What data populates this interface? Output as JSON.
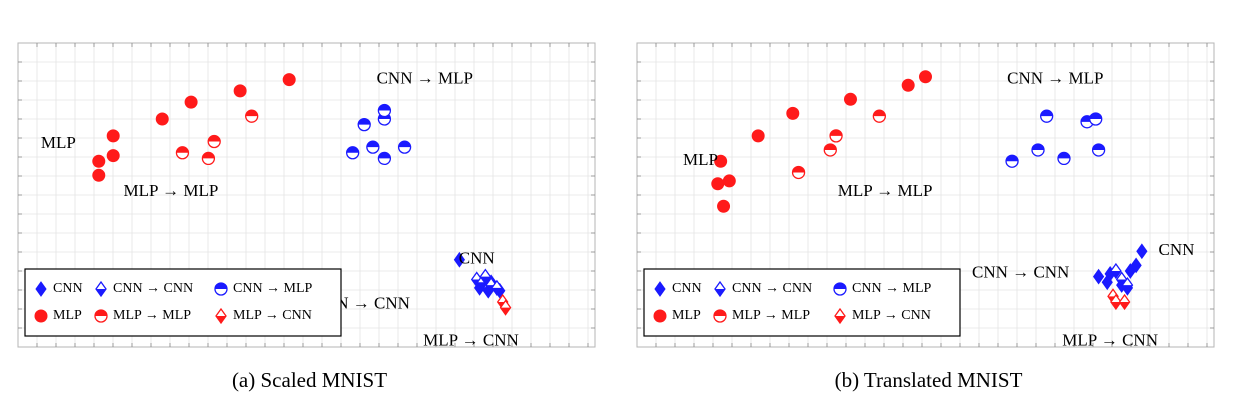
{
  "colors": {
    "cnn": "#1a1aff",
    "mlp": "#ff1a1a",
    "grid": "#e4e4e4",
    "frame": "#b5b5b5"
  },
  "legend": {
    "items": [
      {
        "label": "CNN",
        "marker": "diamond-full",
        "color": "#1a1aff"
      },
      {
        "label": "CNN → CNN",
        "marker": "diamond-half",
        "color": "#1a1aff"
      },
      {
        "label": "CNN → MLP",
        "marker": "circle-half",
        "color": "#1a1aff"
      },
      {
        "label": "MLP",
        "marker": "circle-full",
        "color": "#ff1a1a"
      },
      {
        "label": "MLP → MLP",
        "marker": "circle-half",
        "color": "#ff1a1a"
      },
      {
        "label": "MLP → CNN",
        "marker": "diamond-half",
        "color": "#ff1a1a"
      }
    ]
  },
  "chart_data": [
    {
      "type": "scatter",
      "caption": "(a) Scaled MNIST",
      "grid": true,
      "xlim": [
        0,
        100
      ],
      "ylim": [
        0,
        54
      ],
      "annotations": [
        {
          "text": "CNN → MLP",
          "x": 70.5,
          "y": 47.5
        },
        {
          "text": "MLP",
          "x": 7,
          "y": 36
        },
        {
          "text": "MLP → MLP",
          "x": 26.5,
          "y": 27.5
        },
        {
          "text": "CNN",
          "x": 79.5,
          "y": 15.5
        },
        {
          "text": "CNN → CNN",
          "x": 59.5,
          "y": 7.5
        },
        {
          "text": "MLP → CNN",
          "x": 78.5,
          "y": 1
        }
      ],
      "series": [
        {
          "name": "CNN",
          "marker": "diamond-full",
          "color": "#1a1aff",
          "x": [
            76.5,
            80,
            81.5,
            82,
            83.5
          ],
          "y": [
            15.5,
            10.5,
            10,
            11.5,
            10
          ]
        },
        {
          "name": "CNN → CNN",
          "marker": "diamond-half",
          "color": "#1a1aff",
          "x": [
            79.5,
            80.5,
            81,
            82,
            83
          ],
          "y": [
            12,
            11.5,
            12.5,
            11,
            10.5
          ]
        },
        {
          "name": "CNN → MLP",
          "marker": "circle-half",
          "color": "#1a1aff",
          "x": [
            58,
            60,
            61.5,
            63.5,
            63.5,
            63.5,
            67
          ],
          "y": [
            34.5,
            39.5,
            35.5,
            40.5,
            42,
            33.5,
            35.5
          ]
        },
        {
          "name": "MLP",
          "marker": "circle-full",
          "color": "#ff1a1a",
          "x": [
            14,
            14,
            16.5,
            16.5,
            25,
            30,
            38.5,
            47
          ],
          "y": [
            30.5,
            33,
            37.5,
            34,
            40.5,
            43.5,
            45.5,
            47.5
          ]
        },
        {
          "name": "MLP → MLP",
          "marker": "circle-half",
          "color": "#ff1a1a",
          "x": [
            28.5,
            33,
            34,
            40.5
          ],
          "y": [
            34.5,
            33.5,
            36.5,
            41
          ]
        },
        {
          "name": "MLP → CNN",
          "marker": "diamond-half",
          "color": "#ff1a1a",
          "x": [
            84,
            84.5
          ],
          "y": [
            8,
            7
          ]
        }
      ]
    },
    {
      "type": "scatter",
      "caption": "(b) Translated MNIST",
      "grid": true,
      "xlim": [
        0,
        100
      ],
      "ylim": [
        0,
        54
      ],
      "annotations": [
        {
          "text": "CNN → MLP",
          "x": 72.5,
          "y": 47.5
        },
        {
          "text": "MLP",
          "x": 11,
          "y": 33
        },
        {
          "text": "MLP → MLP",
          "x": 43,
          "y": 27.5
        },
        {
          "text": "CNN",
          "x": 93.5,
          "y": 17
        },
        {
          "text": "CNN → CNN",
          "x": 66.5,
          "y": 13
        },
        {
          "text": "MLP → CNN",
          "x": 82,
          "y": 1
        }
      ],
      "series": [
        {
          "name": "CNN",
          "marker": "diamond-full",
          "color": "#1a1aff",
          "x": [
            80,
            81.5,
            82,
            84,
            85,
            85.5,
            86.5,
            87.5
          ],
          "y": [
            12.5,
            11.5,
            13,
            11,
            10.5,
            13.5,
            14.5,
            17
          ]
        },
        {
          "name": "CNN → CNN",
          "marker": "diamond-half",
          "color": "#1a1aff",
          "x": [
            83,
            84,
            85
          ],
          "y": [
            13.5,
            12,
            11
          ]
        },
        {
          "name": "CNN → MLP",
          "marker": "circle-half",
          "color": "#1a1aff",
          "x": [
            65,
            69.5,
            71,
            74,
            78,
            79.5,
            80
          ],
          "y": [
            33,
            35,
            41,
            33.5,
            40,
            40.5,
            35
          ]
        },
        {
          "name": "MLP",
          "marker": "circle-full",
          "color": "#ff1a1a",
          "x": [
            14,
            14.5,
            15,
            16,
            21,
            27,
            37,
            47,
            50
          ],
          "y": [
            29,
            33,
            25,
            29.5,
            37.5,
            41.5,
            44,
            46.5,
            48
          ]
        },
        {
          "name": "MLP → MLP",
          "marker": "circle-half",
          "color": "#ff1a1a",
          "x": [
            28,
            33.5,
            34.5,
            42
          ],
          "y": [
            31,
            35,
            37.5,
            41
          ]
        },
        {
          "name": "MLP → CNN",
          "marker": "diamond-half",
          "color": "#ff1a1a",
          "x": [
            82.5,
            83,
            84.5
          ],
          "y": [
            9,
            8,
            8
          ]
        }
      ]
    }
  ]
}
